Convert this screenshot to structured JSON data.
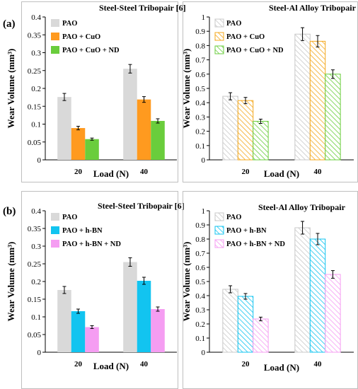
{
  "panels": [
    {
      "label": "(a)"
    },
    {
      "label": "(b)"
    }
  ],
  "colors": {
    "PAO_solid": "#d9d9d9",
    "CuO": "#ff9a1f",
    "CuO_ND": "#6acd3c",
    "hBN": "#12c4f0",
    "hBN_ND": "#f59df2",
    "axis": "#000000",
    "frame": "#bfbfbf"
  },
  "chart_data": [
    {
      "type": "bar",
      "panel": "(a)",
      "title": "Steel-Steel Tribopair [6]",
      "xlabel": "Load (N)",
      "ylabel": "Wear Volume (mm³)",
      "ylim": [
        0,
        0.4
      ],
      "yticks": [
        "0",
        "0.05",
        "0.1",
        "0.15",
        "0.2",
        "0.25",
        "0.3",
        "0.35",
        "0.4"
      ],
      "categories": [
        "20",
        "40"
      ],
      "series": [
        {
          "name": "PAO",
          "values": [
            0.176,
            0.255
          ],
          "errors": [
            0.01,
            0.012
          ],
          "fill": "solid",
          "color": "#d9d9d9"
        },
        {
          "name": "PAO + CuO",
          "values": [
            0.089,
            0.169
          ],
          "errors": [
            0.005,
            0.008
          ],
          "fill": "solid",
          "color": "#ff9a1f"
        },
        {
          "name": "PAO + CuO + ND",
          "values": [
            0.058,
            0.109
          ],
          "errors": [
            0.003,
            0.006
          ],
          "fill": "solid",
          "color": "#6acd3c"
        }
      ],
      "legend": "top-left",
      "grid": false
    },
    {
      "type": "bar",
      "panel": "(a)",
      "title": "Steel-Al Alloy Tribopair",
      "xlabel": "Load (N)",
      "ylabel": "Wear Volume (mm³)",
      "ylim": [
        0,
        1
      ],
      "yticks": [
        "0",
        "0.1",
        "0.2",
        "0.3",
        "0.4",
        "0.5",
        "0.6",
        "0.7",
        "0.8",
        "0.9",
        "1"
      ],
      "categories": [
        "20",
        "40"
      ],
      "series": [
        {
          "name": "PAO",
          "values": [
            0.445,
            0.88
          ],
          "errors": [
            0.025,
            0.045
          ],
          "fill": "hatched",
          "color": "#c8c8c8"
        },
        {
          "name": "PAO + CuO",
          "values": [
            0.415,
            0.83
          ],
          "errors": [
            0.022,
            0.04
          ],
          "fill": "hatched",
          "color": "#f4a81c"
        },
        {
          "name": "PAO + CuO + ND",
          "values": [
            0.27,
            0.6
          ],
          "errors": [
            0.015,
            0.03
          ],
          "fill": "hatched",
          "color": "#6acd3c"
        }
      ],
      "legend": "top-left",
      "grid": false
    },
    {
      "type": "bar",
      "panel": "(b)",
      "title": "Steel-Steel Tribopair [6]",
      "xlabel": "Load (N)",
      "ylabel": "Wear Volume (mm³)",
      "ylim": [
        0,
        0.4
      ],
      "yticks": [
        "0",
        "0.05",
        "0.1",
        "0.15",
        "0.2",
        "0.25",
        "0.3",
        "0.35",
        "0.4"
      ],
      "categories": [
        "20",
        "40"
      ],
      "series": [
        {
          "name": "PAO",
          "values": [
            0.176,
            0.255
          ],
          "errors": [
            0.01,
            0.012
          ],
          "fill": "solid",
          "color": "#d9d9d9"
        },
        {
          "name": "PAO + h-BN",
          "values": [
            0.116,
            0.202
          ],
          "errors": [
            0.006,
            0.01
          ],
          "fill": "solid",
          "color": "#12c4f0"
        },
        {
          "name": "PAO + h-BN + ND",
          "values": [
            0.071,
            0.122
          ],
          "errors": [
            0.004,
            0.006
          ],
          "fill": "solid",
          "color": "#f59df2"
        }
      ],
      "legend": "top-left",
      "grid": false
    },
    {
      "type": "bar",
      "panel": "(b)",
      "title": "Steel-Al Alloy Tribopair",
      "xlabel": "Load (N)",
      "ylabel": "Wear Volume (mm³)",
      "ylim": [
        0,
        1
      ],
      "yticks": [
        "0",
        "0.1",
        "0.2",
        "0.3",
        "0.4",
        "0.5",
        "0.6",
        "0.7",
        "0.8",
        "0.9",
        "1"
      ],
      "categories": [
        "20",
        "40"
      ],
      "series": [
        {
          "name": "PAO",
          "values": [
            0.445,
            0.88
          ],
          "errors": [
            0.025,
            0.045
          ],
          "fill": "hatched",
          "color": "#c8c8c8"
        },
        {
          "name": "PAO + h-BN",
          "values": [
            0.395,
            0.8
          ],
          "errors": [
            0.02,
            0.04
          ],
          "fill": "hatched",
          "color": "#12c4f0"
        },
        {
          "name": "PAO + h-BN + ND",
          "values": [
            0.235,
            0.55
          ],
          "errors": [
            0.013,
            0.027
          ],
          "fill": "hatched",
          "color": "#f59df2"
        }
      ],
      "legend": "top-left",
      "grid": false
    }
  ]
}
